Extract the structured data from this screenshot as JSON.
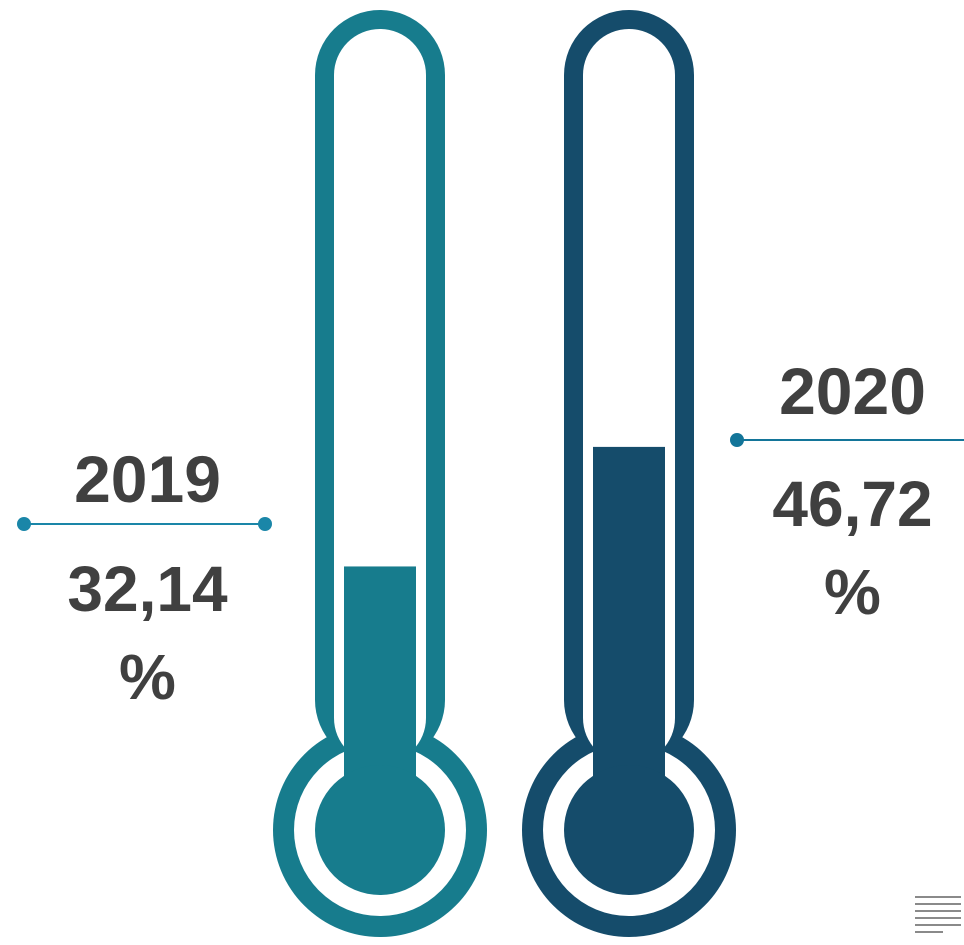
{
  "chart_data": {
    "type": "bar",
    "categories": [
      "2019",
      "2020"
    ],
    "values": [
      32.14,
      46.72
    ],
    "value_labels": [
      "32,14",
      "46,72"
    ],
    "unit": "%",
    "style": "thermometer",
    "ylim": [
      0,
      100
    ],
    "colors": [
      "#177C8D",
      "#154C6B"
    ],
    "connector_colors": [
      "#1A86A8",
      "#137599"
    ]
  },
  "labels": {
    "left": {
      "year": "2019",
      "value": "32,14",
      "unit": "%"
    },
    "right": {
      "year": "2020",
      "value": "46,72",
      "unit": "%"
    }
  },
  "icons": {
    "menu": "menu-lines-icon"
  },
  "text_color": "#404040"
}
